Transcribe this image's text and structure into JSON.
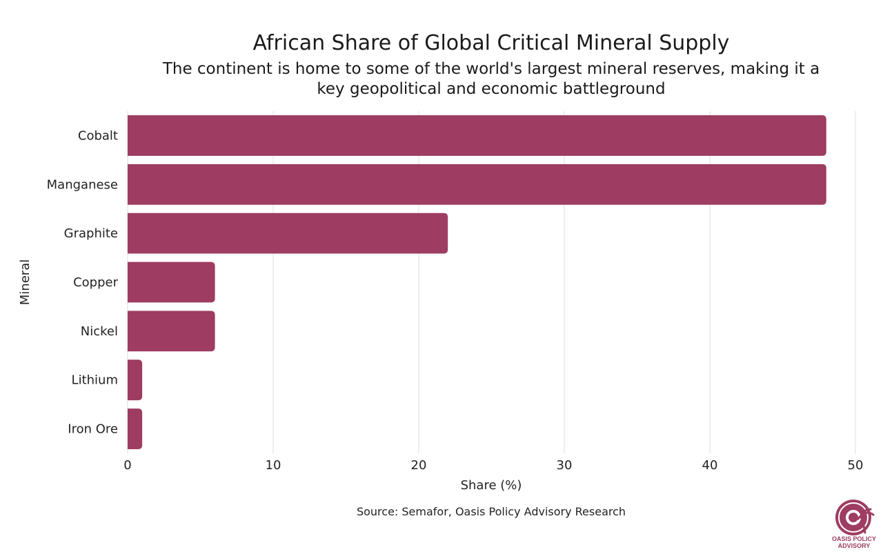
{
  "chart_data": {
    "type": "bar",
    "orientation": "horizontal",
    "title": "African Share of Global Critical Mineral Supply",
    "subtitle_lines": [
      "The continent is home to some of the world's largest mineral reserves, making it a",
      "key geopolitical and economic battleground"
    ],
    "categories": [
      "Cobalt",
      "Manganese",
      "Graphite",
      "Copper",
      "Nickel",
      "Lithium",
      "Iron Ore"
    ],
    "values": [
      48,
      48,
      22,
      6,
      6,
      1,
      1
    ],
    "xlabel": "Share (%)",
    "ylabel": "Mineral",
    "xlim": [
      0,
      50
    ],
    "xticks": [
      0,
      10,
      20,
      30,
      40,
      50
    ],
    "grid": true,
    "bar_color": "#9e3c61"
  },
  "source": "Source: Semafor, Oasis Policy Advisory Research",
  "logo": {
    "name": "oasis-policy-advisory-logo",
    "lines": [
      "OASIS POLICY",
      "ADVISORY"
    ],
    "color": "#9e3c61"
  }
}
